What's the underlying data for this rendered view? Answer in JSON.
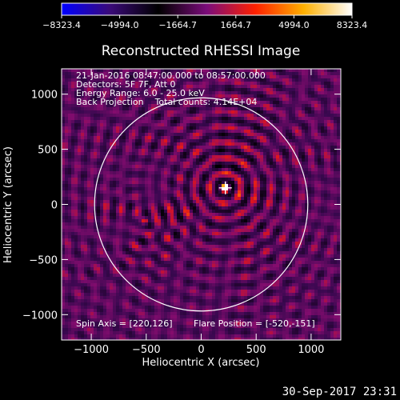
{
  "chart_data": {
    "type": "heatmap",
    "title": "Reconstructed RHESSI Image",
    "xlabel": "Heliocentric X (arcsec)",
    "ylabel": "Heliocentric Y (arcsec)",
    "xlim": [
      -1270,
      1270
    ],
    "ylim": [
      -1230,
      1230
    ],
    "x_ticks": [
      -1000,
      -500,
      0,
      500,
      1000
    ],
    "y_ticks": [
      -1000,
      -500,
      0,
      500,
      1000
    ],
    "x_tick_labels": [
      "−1000",
      "−500",
      "0",
      "500",
      "1000"
    ],
    "y_tick_labels": [
      "−1000",
      "−500",
      "0",
      "500",
      "1000"
    ],
    "colorbar": {
      "min": -8323.4,
      "max": 8323.4,
      "ticks": [
        -8323.4,
        -4994.0,
        -1664.7,
        1664.7,
        4994.0,
        8323.4
      ],
      "tick_labels": [
        "−8323.4",
        "−4994.0",
        "−1664.7",
        "1664.7",
        "4994.0",
        "8323.4"
      ],
      "colors": [
        "#0000ff",
        "#3a0a78",
        "#000000",
        "#7a0c7a",
        "#ff2000",
        "#ffb000",
        "#ffffff"
      ]
    },
    "solar_limb_radius_arcsec": 970,
    "source": {
      "x": 220,
      "y": 150,
      "label": "+"
    },
    "secondary_source": {
      "x": -510,
      "y": -150
    },
    "annotations": [
      "21-Jan-2016 08:47:00.000 to 08:57:00.000",
      "Detectors: 5F 7F, Att 0",
      "Energy Range: 6.0 - 25.0 keV",
      "Back Projection    Total counts: 4.14E+04"
    ],
    "spin_axis": "Spin Axis = [220,126]",
    "flare_position": "Flare Position = [-520,-151]",
    "limb_color": "#ffffff"
  },
  "footer": {
    "timestamp": "30-Sep-2017 23:31"
  }
}
